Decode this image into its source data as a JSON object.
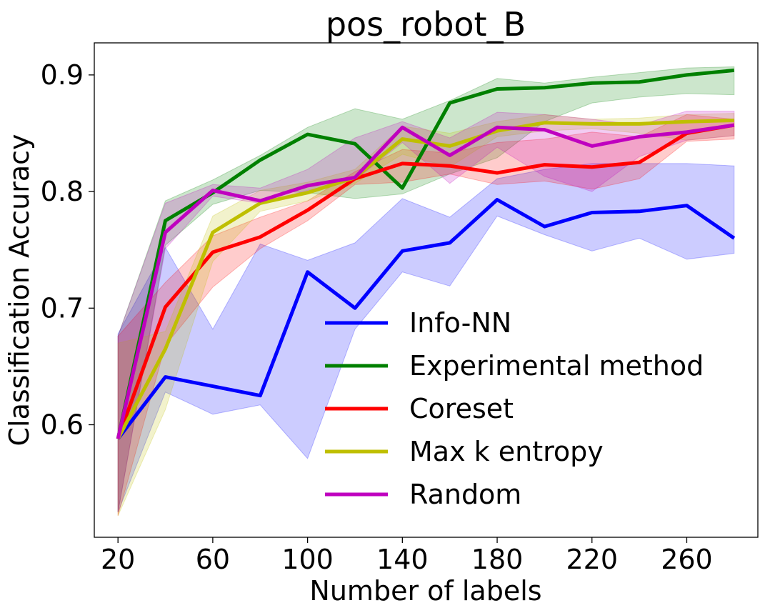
{
  "chart_data": {
    "type": "line",
    "title": "pos_robot_B",
    "xlabel": "Number of labels",
    "ylabel": "Classification Accuracy",
    "xlim": [
      10,
      290
    ],
    "ylim": [
      0.5035,
      0.9275
    ],
    "xticks": [
      20,
      60,
      100,
      140,
      180,
      220,
      260
    ],
    "yticks": [
      0.6,
      0.7,
      0.8,
      0.9
    ],
    "ytick_labels": [
      "0.6",
      "0.7",
      "0.8",
      "0.9"
    ],
    "grid": false,
    "legend_position": "lower-right",
    "x": [
      20,
      40,
      60,
      80,
      100,
      120,
      140,
      160,
      180,
      200,
      220,
      240,
      260,
      280
    ],
    "series": [
      {
        "name": "Info-NN",
        "color": "#0000ff",
        "values": [
          0.588,
          0.641,
          0.633,
          0.625,
          0.731,
          0.7,
          0.749,
          0.756,
          0.793,
          0.77,
          0.782,
          0.783,
          0.788,
          0.76
        ],
        "lower": [
          0.525,
          0.628,
          0.609,
          0.617,
          0.571,
          0.682,
          0.731,
          0.719,
          0.779,
          0.763,
          0.749,
          0.76,
          0.742,
          0.747
        ],
        "upper": [
          0.678,
          0.752,
          0.682,
          0.755,
          0.741,
          0.756,
          0.794,
          0.778,
          0.811,
          0.819,
          0.824,
          0.824,
          0.824,
          0.822
        ]
      },
      {
        "name": "Experimental method",
        "color": "#008000",
        "values": [
          0.588,
          0.775,
          0.799,
          0.827,
          0.849,
          0.841,
          0.803,
          0.876,
          0.888,
          0.889,
          0.893,
          0.894,
          0.9,
          0.904
        ],
        "lower": [
          0.525,
          0.754,
          0.789,
          0.801,
          0.799,
          0.794,
          0.798,
          0.815,
          0.829,
          0.86,
          0.876,
          0.881,
          0.884,
          0.883
        ],
        "upper": [
          0.676,
          0.792,
          0.81,
          0.831,
          0.855,
          0.871,
          0.862,
          0.878,
          0.897,
          0.893,
          0.898,
          0.902,
          0.906,
          0.907
        ]
      },
      {
        "name": "Coreset",
        "color": "#ff0000",
        "values": [
          0.588,
          0.701,
          0.748,
          0.761,
          0.784,
          0.811,
          0.824,
          0.822,
          0.816,
          0.823,
          0.821,
          0.825,
          0.85,
          0.857
        ],
        "lower": [
          0.522,
          0.668,
          0.718,
          0.751,
          0.775,
          0.806,
          0.808,
          0.815,
          0.806,
          0.809,
          0.802,
          0.811,
          0.843,
          0.845
        ],
        "upper": [
          0.676,
          0.722,
          0.762,
          0.778,
          0.792,
          0.817,
          0.836,
          0.833,
          0.842,
          0.845,
          0.851,
          0.847,
          0.866,
          0.862
        ]
      },
      {
        "name": "Max k entropy",
        "color": "#bfbf00",
        "values": [
          0.588,
          0.665,
          0.765,
          0.79,
          0.799,
          0.812,
          0.845,
          0.839,
          0.852,
          0.859,
          0.858,
          0.858,
          0.86,
          0.861
        ],
        "lower": [
          0.522,
          0.613,
          0.74,
          0.783,
          0.792,
          0.807,
          0.832,
          0.821,
          0.847,
          0.852,
          0.854,
          0.85,
          0.844,
          0.848
        ],
        "upper": [
          0.67,
          0.68,
          0.779,
          0.801,
          0.808,
          0.819,
          0.856,
          0.85,
          0.86,
          0.866,
          0.862,
          0.863,
          0.866,
          0.867
        ]
      },
      {
        "name": "Random",
        "color": "#bf00bf",
        "values": [
          0.588,
          0.765,
          0.801,
          0.792,
          0.805,
          0.812,
          0.855,
          0.831,
          0.855,
          0.853,
          0.839,
          0.847,
          0.851,
          0.857
        ],
        "lower": [
          0.525,
          0.751,
          0.796,
          0.79,
          0.801,
          0.81,
          0.842,
          0.807,
          0.838,
          0.813,
          0.8,
          0.83,
          0.844,
          0.848
        ],
        "upper": [
          0.676,
          0.79,
          0.806,
          0.803,
          0.819,
          0.846,
          0.86,
          0.846,
          0.868,
          0.866,
          0.862,
          0.857,
          0.869,
          0.869
        ]
      }
    ]
  }
}
